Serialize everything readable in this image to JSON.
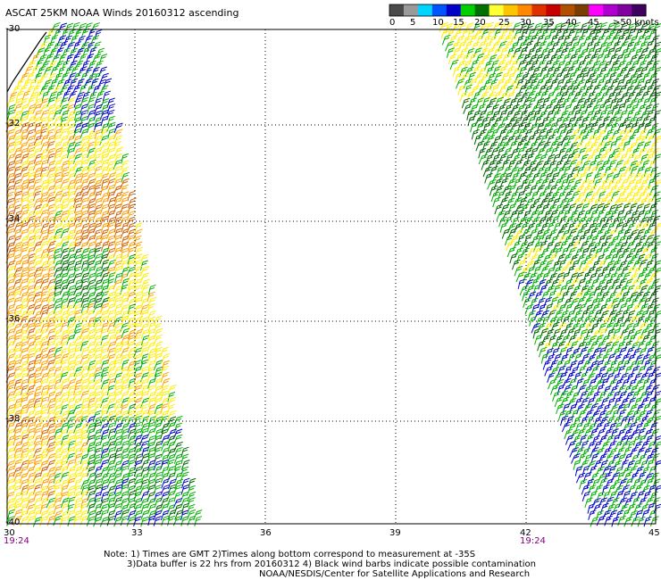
{
  "title": "ASCAT 25KM NOAA Winds 20160312 ascending",
  "legend": {
    "labels": [
      "0",
      "5",
      "10",
      "15",
      "20",
      "25",
      "30",
      "35",
      "40",
      "45",
      ">50 knots"
    ],
    "colors": [
      "#4a4a4a",
      "#9a9a9a",
      "#00d4ff",
      "#0055ff",
      "#0000c8",
      "#00d000",
      "#007000",
      "#ffff33",
      "#ffc400",
      "#ff8800",
      "#e03000",
      "#c80000",
      "#b05000",
      "#7a3f00",
      "#ff00ff",
      "#b000d0",
      "#8000a0",
      "#400060"
    ]
  },
  "axes": {
    "lat_labels": [
      "-30",
      "-32",
      "-34",
      "-36",
      "-38",
      "-40"
    ],
    "lon_labels": [
      "30",
      "33",
      "36",
      "39",
      "42",
      "45"
    ]
  },
  "time_labels": [
    "19:24",
    "19:24"
  ],
  "notes": {
    "line1": "Note: 1) Times are GMT 2)Times along bottom correspond to measurement at -35S",
    "line2": "3)Data buffer is 22 hrs from 20160312 4) Black wind barbs indicate possible contamination",
    "line3": "NOAA/NESDIS/Center for Satellite Applications and Research"
  },
  "wind_colors": {
    "blue": "#0000c8",
    "green": "#00b000",
    "dark_green": "#006400",
    "yellow": "#ffee00",
    "orange": "#ffa000",
    "dark_orange": "#d06000"
  }
}
